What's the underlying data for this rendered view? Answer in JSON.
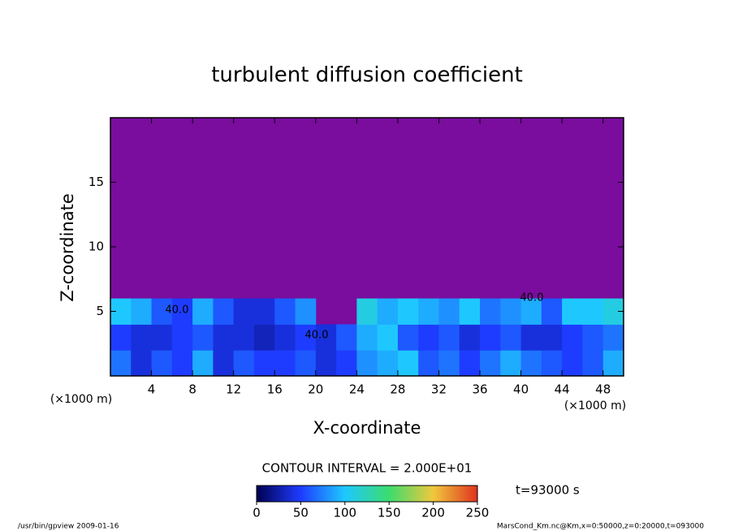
{
  "chart_data": {
    "type": "heatmap",
    "title": "turbulent diffusion coefficient",
    "xlabel": "X-coordinate",
    "ylabel": "Z-coordinate",
    "x_unit": "(×1000 m)",
    "xlim": [
      0,
      50
    ],
    "ylim": [
      0,
      20
    ],
    "xticks": [
      4,
      8,
      12,
      16,
      20,
      24,
      28,
      32,
      36,
      40,
      44,
      48
    ],
    "yticks": [
      5,
      10,
      15
    ],
    "x_edges": [
      0,
      2,
      4,
      6,
      8,
      10,
      12,
      14,
      16,
      18,
      20,
      22,
      24,
      26,
      28,
      30,
      32,
      34,
      36,
      38,
      40,
      42,
      44,
      46,
      48,
      50
    ],
    "z_edges": [
      0,
      2,
      4,
      6
    ],
    "z": [
      [
        70,
        40,
        60,
        50,
        90,
        40,
        60,
        50,
        50,
        60,
        40,
        50,
        80,
        90,
        100,
        60,
        70,
        50,
        70,
        90,
        70,
        60,
        50,
        60,
        90
      ],
      [
        50,
        40,
        40,
        50,
        60,
        40,
        40,
        30,
        40,
        50,
        40,
        60,
        90,
        100,
        60,
        50,
        60,
        40,
        50,
        60,
        40,
        40,
        50,
        60,
        70
      ],
      [
        100,
        90,
        60,
        50,
        90,
        60,
        40,
        40,
        60,
        80,
        null,
        null,
        110,
        90,
        100,
        90,
        80,
        100,
        70,
        80,
        90,
        60,
        100,
        100,
        110
      ]
    ],
    "background_color": "#7a0c9e",
    "clim": [
      0,
      250
    ],
    "colormap": [
      "#000050",
      "#1e3cff",
      "#1ec8ff",
      "#3cdc6e",
      "#f0c83c",
      "#e0321e"
    ],
    "colorbar_ticks": [
      0,
      50,
      100,
      150,
      200,
      250
    ],
    "contour_labels": [
      "40.0",
      "40.0",
      "40.0"
    ],
    "contour_interval": "CONTOUR INTERVAL = 2.000E+01",
    "time_label": "t=93000 s",
    "footer_left": "/usr/bin/gpview   2009-01-16",
    "footer_right": "MarsCond_Km.nc@Km,x=0:50000,z=0:20000,t=093000"
  }
}
